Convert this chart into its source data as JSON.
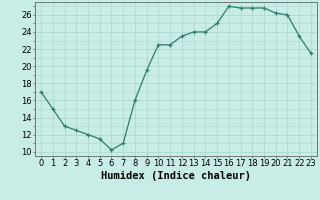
{
  "x": [
    0,
    1,
    2,
    3,
    4,
    5,
    6,
    7,
    8,
    9,
    10,
    11,
    12,
    13,
    14,
    15,
    16,
    17,
    18,
    19,
    20,
    21,
    22,
    23
  ],
  "y": [
    17,
    15,
    13,
    12.5,
    12,
    11.5,
    10.2,
    11,
    16,
    19.5,
    22.5,
    22.5,
    23.5,
    24,
    24,
    25,
    27,
    26.8,
    26.8,
    26.8,
    26.2,
    26,
    23.5,
    21.5
  ],
  "line_color": "#2e7d6e",
  "bg_color": "#c8ece6",
  "grid_color": "#b0d8d0",
  "xlabel": "Humidex (Indice chaleur)",
  "xlabel_fontsize": 7.5,
  "tick_fontsize": 6,
  "ylim": [
    9.5,
    27.5
  ],
  "xlim": [
    -0.5,
    23.5
  ],
  "yticks": [
    10,
    12,
    14,
    16,
    18,
    20,
    22,
    24,
    26
  ],
  "xticks": [
    0,
    1,
    2,
    3,
    4,
    5,
    6,
    7,
    8,
    9,
    10,
    11,
    12,
    13,
    14,
    15,
    16,
    17,
    18,
    19,
    20,
    21,
    22,
    23
  ]
}
